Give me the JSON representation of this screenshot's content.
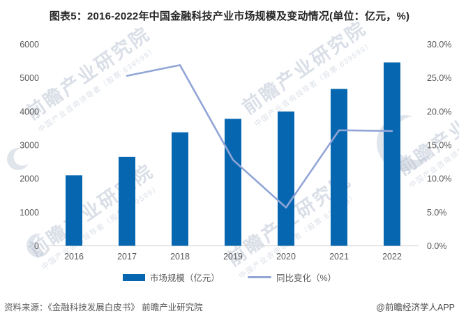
{
  "title": "图表5：2016-2022年中国金融科技产业市场规模及变动情况(单位：亿元，%)",
  "colors": {
    "bar": "#0667b0",
    "line": "#91a5d6",
    "axis_text": "#595959",
    "axis_line": "#d9d9d9",
    "title_text": "#262626",
    "watermark": "#b6c1d1",
    "watermark_logo": "#c7d0dc"
  },
  "chart_data": {
    "type": "bar+line combo",
    "categories": [
      "2016",
      "2017",
      "2018",
      "2019",
      "2020",
      "2021",
      "2022"
    ],
    "series": [
      {
        "name": "市场规模（亿元）",
        "type": "bar",
        "axis": "left",
        "categories": [
          "2016",
          "2017",
          "2018",
          "2019",
          "2020",
          "2021",
          "2022"
        ],
        "values": [
          2100,
          2650,
          3380,
          3780,
          4000,
          4670,
          5460
        ]
      },
      {
        "name": "同比变化（%）",
        "type": "line",
        "axis": "right",
        "categories": [
          "2017",
          "2018",
          "2019",
          "2020",
          "2021",
          "2022"
        ],
        "values": [
          25.3,
          26.9,
          12.8,
          5.7,
          17.2,
          17.1
        ]
      }
    ],
    "left_axis": {
      "min": 0,
      "max": 6000,
      "step": 1000,
      "tick_labels": [
        "0",
        "1000",
        "2000",
        "3000",
        "4000",
        "5000",
        "6000"
      ]
    },
    "right_axis": {
      "min": 0,
      "max": 30,
      "step": 5,
      "tick_labels": [
        "0.0%",
        "5.0%",
        "10.0%",
        "15.0%",
        "20.0%",
        "25.0%",
        "30.0%"
      ]
    },
    "grid": false,
    "legend_position": "bottom",
    "title": "图表5：2016-2022年中国金融科技产业市场规模及变动情况(单位：亿元，%)"
  },
  "legend": {
    "items": [
      {
        "label": "市场规模（亿元）",
        "swatch": "bar"
      },
      {
        "label": "同比变化（%）",
        "swatch": "line"
      }
    ]
  },
  "watermark": {
    "brand": "前瞻产业研究院",
    "tagline": "中国产业咨询领导者（股票:839599）"
  },
  "footer": {
    "source": "资料来源：《金融科技发展白皮书》 前瞻产业研究院",
    "credit": "@前瞻经济学人APP"
  }
}
